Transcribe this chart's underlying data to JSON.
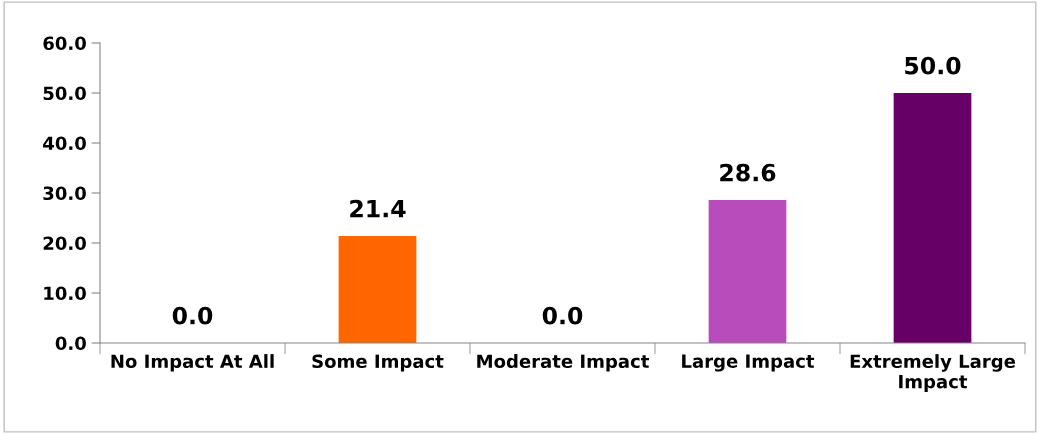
{
  "chart_data": {
    "type": "bar",
    "categories": [
      "No Impact At All",
      "Some Impact",
      "Moderate Impact",
      "Large Impact",
      "Extremely Large Impact"
    ],
    "values": [
      0.0,
      21.4,
      0.0,
      28.6,
      50.0
    ],
    "colors": [
      "#4f81bd",
      "#ff6600",
      "#9bbb59",
      "#b84cbb",
      "#660066"
    ],
    "value_labels": [
      "0.0",
      "21.4",
      "0.0",
      "28.6",
      "50.0"
    ],
    "ylim": [
      0,
      60
    ],
    "yticks": [
      {
        "value": 0,
        "label": "0.0"
      },
      {
        "value": 10,
        "label": "10.0"
      },
      {
        "value": 20,
        "label": "20.0"
      },
      {
        "value": 30,
        "label": "30.0"
      },
      {
        "value": 40,
        "label": "40.0"
      },
      {
        "value": 50,
        "label": "50.0"
      },
      {
        "value": 60,
        "label": "60.0"
      }
    ],
    "grid": false,
    "legend": false
  }
}
